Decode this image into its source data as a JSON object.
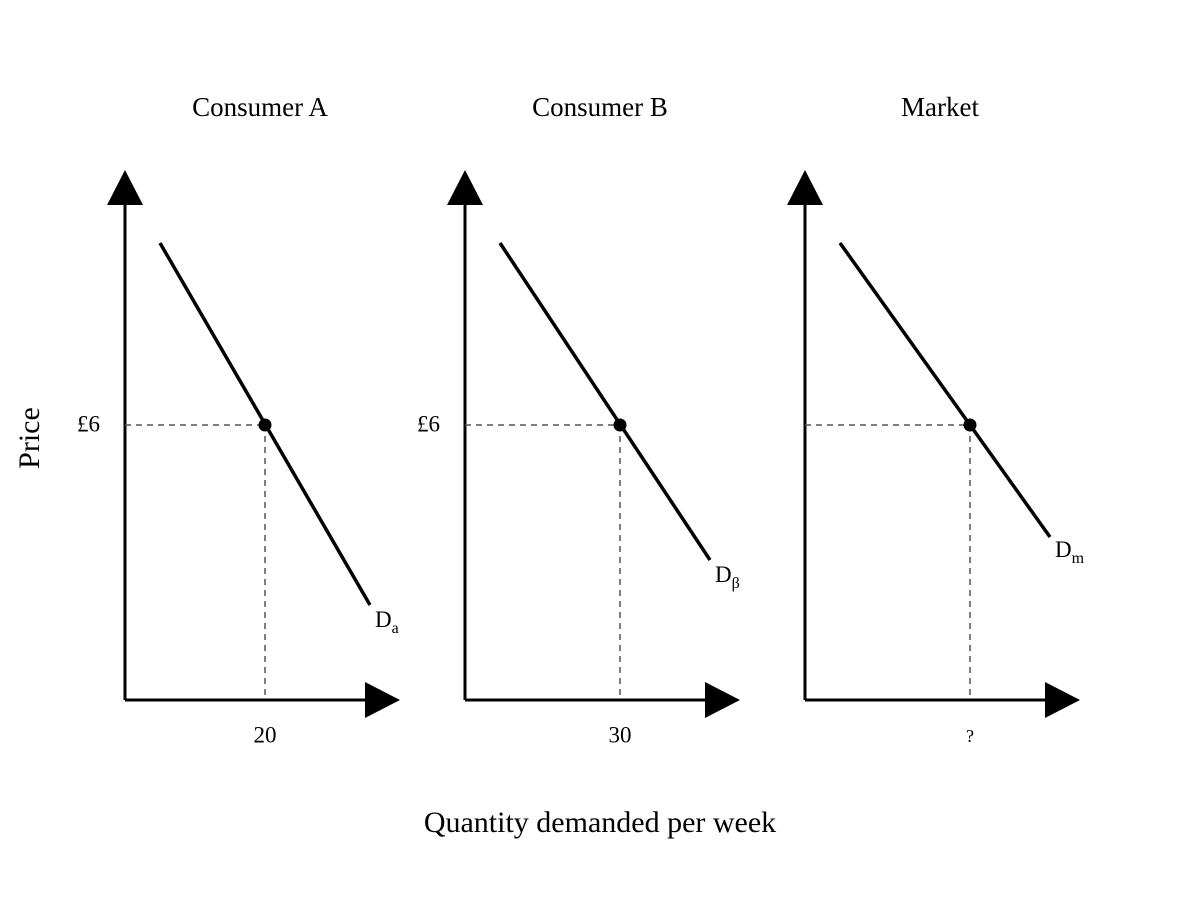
{
  "labels": {
    "y_axis": "Price",
    "x_axis": "Quantity demanded per week"
  },
  "panels": [
    {
      "title": "Consumer A",
      "price_label": "£6",
      "quantity_label": "20",
      "curve_label": {
        "main": "D",
        "sub": "a"
      }
    },
    {
      "title": "Consumer B",
      "price_label": "£6",
      "quantity_label": "30",
      "curve_label": {
        "main": "D",
        "sub": "β"
      }
    },
    {
      "title": "Market",
      "quantity_label": "?",
      "curve_label": {
        "main": "D",
        "sub": "m"
      }
    }
  ]
}
